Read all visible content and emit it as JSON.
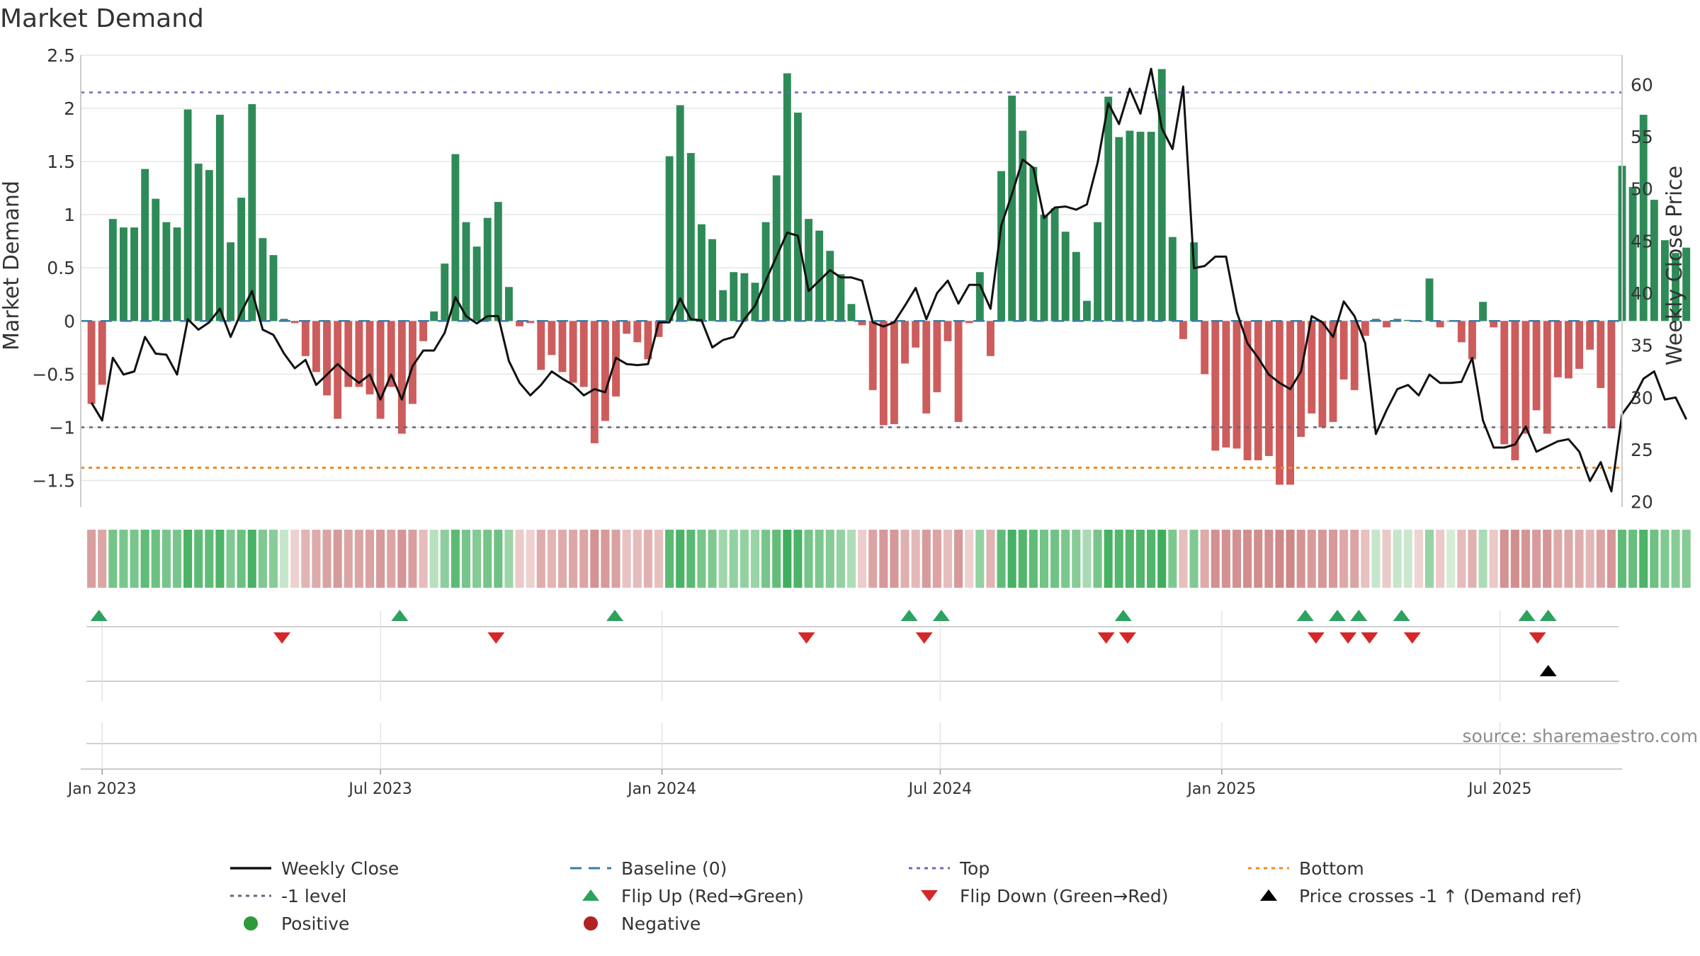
{
  "colors": {
    "positive": "#2e8b57",
    "negative": "#cd5c5c",
    "line": "#111111",
    "baseline": "#3a7ca5",
    "top": "#6a6ab8",
    "minus1": "#66667a",
    "bottom": "#f08a24",
    "flip_up": "#2ca25f",
    "flip_down": "#d62728",
    "cross": "#000000",
    "grid": "#e6e6e6"
  },
  "chart_data": {
    "type": "bar",
    "title": "Market Demand",
    "ylabel": "Market Demand",
    "y2label": "Weekly Close Price",
    "ylim": [
      -1.75,
      2.5
    ],
    "y2lim": [
      19.5,
      62.8
    ],
    "yticks": [
      2.5,
      2,
      1.5,
      1,
      0.5,
      0,
      -0.5,
      -1,
      -1.5
    ],
    "ytick_labels": [
      "2.5",
      "2",
      "1.5",
      "1",
      "0.5",
      "0",
      "−0.5",
      "−1",
      "−1.5"
    ],
    "y2ticks": [
      60,
      55,
      50,
      45,
      40,
      35,
      30,
      25,
      20
    ],
    "y2tick_labels": [
      "60",
      "55",
      "50",
      "45",
      "40",
      "35",
      "30",
      "25",
      "20"
    ],
    "x_start_week": -1,
    "x_end_week": 143,
    "first_week_index": 0,
    "xtick_weeks": [
      1,
      27,
      53.3,
      79.3,
      105.6,
      131.6
    ],
    "xtick_labels": [
      "Jan 2023",
      "Jul 2023",
      "Jan 2024",
      "Jul 2024",
      "Jan 2025",
      "Jul 2025"
    ],
    "reference_lines": [
      {
        "name": "Top",
        "value": 2.15
      },
      {
        "name": "-1 level",
        "value": -1
      },
      {
        "name": "Bottom",
        "value": -1.38
      },
      {
        "name": "Baseline (0)",
        "value": 0
      }
    ],
    "demand": [
      -0.78,
      -0.6,
      0.96,
      0.88,
      0.88,
      1.43,
      1.15,
      0.93,
      0.88,
      1.99,
      1.48,
      1.42,
      1.94,
      0.74,
      1.16,
      2.04,
      0.78,
      0.62,
      0.02,
      -0.02,
      -0.33,
      -0.48,
      -0.7,
      -0.92,
      -0.62,
      -0.62,
      -0.69,
      -0.92,
      -0.62,
      -1.06,
      -0.78,
      -0.19,
      0.09,
      0.54,
      1.57,
      0.93,
      0.7,
      0.97,
      1.12,
      0.32,
      -0.05,
      -0.02,
      -0.46,
      -0.32,
      -0.48,
      -0.58,
      -0.62,
      -1.15,
      -0.94,
      -0.71,
      -0.12,
      -0.2,
      -0.36,
      -0.15,
      1.55,
      2.03,
      1.58,
      0.91,
      0.77,
      0.29,
      0.46,
      0.45,
      0.36,
      0.93,
      1.37,
      2.33,
      1.96,
      0.96,
      0.85,
      0.66,
      0.44,
      0.16,
      -0.04,
      -0.65,
      -0.98,
      -0.97,
      -0.4,
      -0.25,
      -0.87,
      -0.67,
      -0.19,
      -0.95,
      -0.02,
      0.46,
      -0.33,
      1.41,
      2.12,
      1.79,
      1.45,
      1.0,
      1.06,
      0.84,
      0.65,
      0.19,
      0.93,
      2.11,
      1.73,
      1.79,
      1.78,
      1.78,
      2.37,
      0.79,
      -0.17,
      0.74,
      -0.5,
      -1.22,
      -1.19,
      -1.2,
      -1.31,
      -1.31,
      -1.27,
      -1.54,
      -1.54,
      -1.09,
      -0.87,
      -1.0,
      -0.95,
      -0.55,
      -0.65,
      -0.14,
      0.02,
      -0.06,
      0.02,
      0.01,
      -0.01,
      0.4,
      -0.06,
      0.0,
      -0.2,
      -0.36,
      0.18,
      -0.06,
      -1.16,
      -1.31,
      -1.06,
      -0.84,
      -1.06,
      -0.53,
      -0.54,
      -0.45,
      -0.27,
      -0.63,
      -1.01,
      1.46,
      1.26,
      1.94,
      1.14,
      0.76,
      0.64,
      0.69
    ],
    "close": [
      29.5,
      27.8,
      33.8,
      32.2,
      32.5,
      35.8,
      34.2,
      34.1,
      32.2,
      37.5,
      36.5,
      37.2,
      38.5,
      35.8,
      38.2,
      40.2,
      36.5,
      36.0,
      34.2,
      32.8,
      33.6,
      31.2,
      32.2,
      33.2,
      32.2,
      31.4,
      32.2,
      29.8,
      32.2,
      29.8,
      33.0,
      34.5,
      34.5,
      36.2,
      39.6,
      37.8,
      37.1,
      37.8,
      37.8,
      33.5,
      31.4,
      30.2,
      31.2,
      32.5,
      31.8,
      31.2,
      30.2,
      30.8,
      30.5,
      33.8,
      33.2,
      33.1,
      33.2,
      37.2,
      37.2,
      39.5,
      37.5,
      37.4,
      34.8,
      35.5,
      35.8,
      37.5,
      38.8,
      41.2,
      43.5,
      45.8,
      45.5,
      40.2,
      41.2,
      42.2,
      41.5,
      41.5,
      41.2,
      37.2,
      36.8,
      37.2,
      38.8,
      40.5,
      37.5,
      40.0,
      41.2,
      39.0,
      40.8,
      40.8,
      38.5,
      46.5,
      49.5,
      52.8,
      52.0,
      47.2,
      48.2,
      48.3,
      48.0,
      48.5,
      52.5,
      58.2,
      56.2,
      59.6,
      57.2,
      61.5,
      55.8,
      53.8,
      59.8,
      42.4,
      42.6,
      43.5,
      43.5,
      38.2,
      35.2,
      33.8,
      32.2,
      31.4,
      30.8,
      32.5,
      37.8,
      37.2,
      35.8,
      39.2,
      37.8,
      35.2,
      26.5,
      28.8,
      30.8,
      31.2,
      30.2,
      32.2,
      31.4,
      31.4,
      31.5,
      33.8,
      27.8,
      25.2,
      25.2,
      25.5,
      27.2,
      24.8,
      25.3,
      25.8,
      26.0,
      24.8,
      22.0,
      23.8,
      21.0,
      28.4,
      29.8,
      31.8,
      32.5,
      29.8,
      30.0,
      27.9
    ],
    "flip_up_weeks": [
      0.7,
      28.8,
      48.9,
      76.4,
      79.4,
      96.4,
      113.4,
      116.4,
      118.4,
      122.4,
      134.1,
      136.1
    ],
    "flip_down_weeks": [
      17.8,
      37.8,
      66.8,
      77.8,
      94.8,
      96.8,
      114.4,
      117.4,
      119.4,
      123.4,
      135.1
    ],
    "price_cross_weeks": [
      136.1
    ],
    "legend": [
      {
        "key": "Weekly Close",
        "label": "Weekly Close",
        "kind": "line"
      },
      {
        "key": "Baseline (0)",
        "label": "Baseline (0)",
        "kind": "dash"
      },
      {
        "key": "Top",
        "label": "Top",
        "kind": "dot"
      },
      {
        "key": "Bottom",
        "label": "Bottom",
        "kind": "dot-orange"
      },
      {
        "key": "-1 level",
        "label": "-1 level",
        "kind": "dot-grey"
      },
      {
        "key": "Flip Up",
        "label": "Flip Up (Red→Green)",
        "kind": "tri-up-green"
      },
      {
        "key": "Flip Down",
        "label": "Flip Down (Green→Red)",
        "kind": "tri-down-red"
      },
      {
        "key": "Price crosses",
        "label": "Price crosses -1 ↑ (Demand ref)",
        "kind": "tri-up-black"
      },
      {
        "key": "Positive",
        "label": "Positive",
        "kind": "dot-green"
      },
      {
        "key": "Negative",
        "label": "Negative",
        "kind": "dot-red"
      }
    ]
  },
  "source": "source: sharemaestro.com"
}
